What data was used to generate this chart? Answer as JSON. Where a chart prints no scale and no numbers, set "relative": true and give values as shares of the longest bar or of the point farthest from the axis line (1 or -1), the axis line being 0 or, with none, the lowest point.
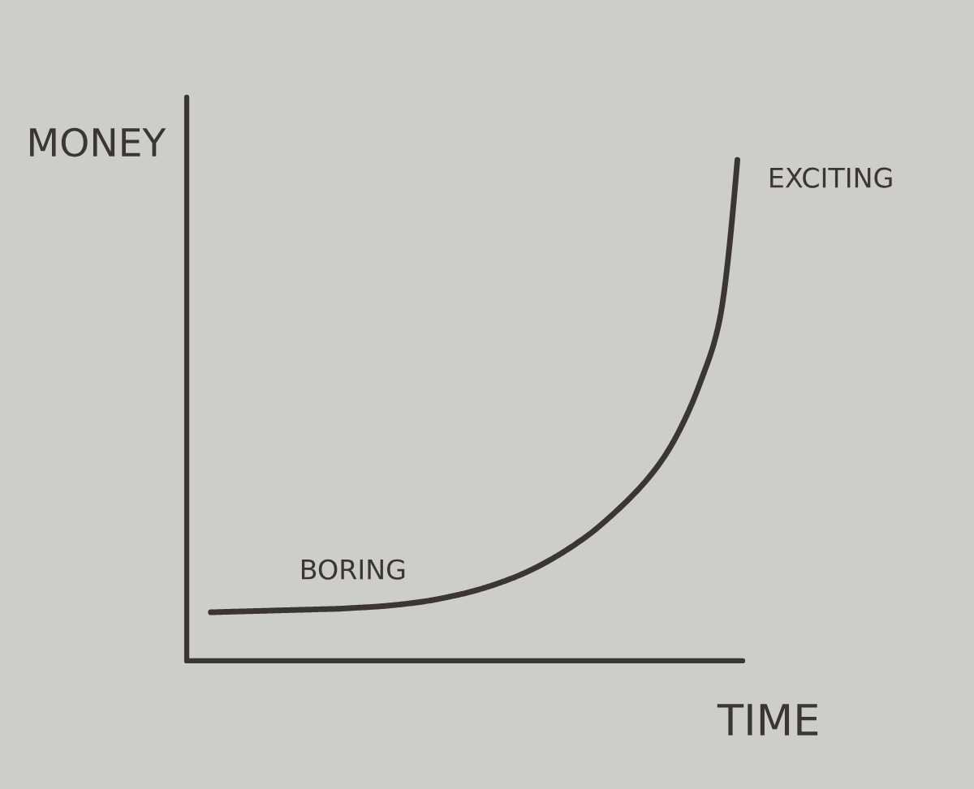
{
  "chart_data": {
    "type": "line",
    "relative": true,
    "xlabel": "TIME",
    "ylabel": "MONEY",
    "annotations": [
      "BORING",
      "EXCITING"
    ],
    "line_style": "solid",
    "categories": [
      null,
      null,
      null,
      null,
      null,
      null,
      null,
      null,
      null,
      null,
      null,
      null,
      null,
      null,
      null,
      null,
      null,
      null,
      null,
      null,
      null,
      null,
      null,
      null,
      null,
      null,
      null,
      null,
      null,
      null
    ],
    "series": [
      {
        "color": "#3b3634",
        "values": [
          0.097,
          0.098,
          0.099,
          0.1,
          0.101,
          0.102,
          0.103,
          0.104,
          0.106,
          0.108,
          0.111,
          0.115,
          0.12,
          0.127,
          0.135,
          0.145,
          0.157,
          0.171,
          0.188,
          0.208,
          0.231,
          0.257,
          0.288,
          0.322,
          0.361,
          0.409,
          0.474,
          0.56,
          0.677,
          1.0
        ]
      }
    ]
  }
}
